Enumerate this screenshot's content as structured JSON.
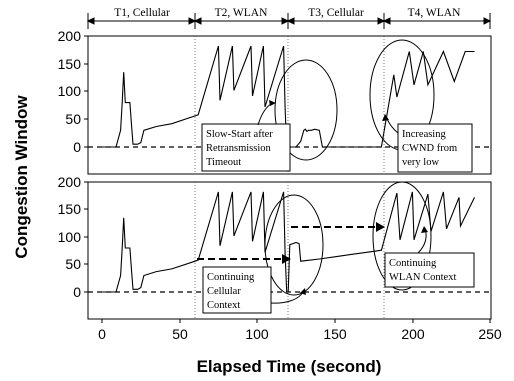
{
  "chart_data": {
    "type": "line",
    "xlabel": "Elapsed Time (second)",
    "ylabel": "Congestion Window",
    "xlim": [
      -15,
      250
    ],
    "ylim": [
      -25,
      200
    ],
    "x_ticks": [
      "0",
      "50",
      "100",
      "150",
      "200",
      "250"
    ],
    "y_ticks": [
      "0",
      "50",
      "100",
      "150",
      "200"
    ],
    "grid": false,
    "periods": [
      {
        "label": "T1, Cellular",
        "start": 0,
        "end": 60
      },
      {
        "label": "T2, WLAN",
        "start": 60,
        "end": 120
      },
      {
        "label": "T3, Cellular",
        "start": 120,
        "end": 180
      },
      {
        "label": "T4, WLAN",
        "start": 180,
        "end": 240
      }
    ],
    "panels": [
      {
        "position": "top",
        "series": [
          {
            "x": [
              0,
              9,
              12,
              13,
              14,
              15,
              16,
              18,
              19,
              20,
              23,
              25,
              27,
              35,
              45,
              60,
              62,
              75,
              76,
              84,
              85,
              96,
              97,
              104,
              105,
              117,
              118,
              119,
              120,
              125,
              128,
              130,
              131,
              132,
              133,
              135,
              137,
              140,
              142,
              179,
              180,
              188,
              190,
              198,
              201,
              207,
              210,
              220,
              227,
              234,
              240
            ],
            "y": [
              0,
              0,
              30,
              80,
              135,
              80,
              80,
              80,
              40,
              5,
              5,
              8,
              30,
              37,
              42,
              56,
              58,
              182,
              84,
              182,
              102,
              182,
              92,
              182,
              72,
              182,
              70,
              0,
              0,
              0,
              10,
              30,
              32,
              28,
              30,
              30,
              32,
              30,
              0,
              0,
              0,
              130,
              90,
              172,
              112,
              172,
              112,
              172,
              118,
              172,
              172
            ]
          }
        ],
        "baseline": 0,
        "annotations": [
          "Slow-Start after Retransmission Timeout",
          "Increasing CWND from very low"
        ]
      },
      {
        "position": "bottom",
        "series": [
          {
            "x": [
              0,
              9,
              12,
              13,
              14,
              15,
              16,
              18,
              19,
              20,
              23,
              25,
              27,
              35,
              45,
              60,
              62,
              75,
              76,
              84,
              85,
              96,
              97,
              104,
              105,
              117,
              118,
              119,
              120,
              121,
              123,
              125,
              127,
              128,
              140,
              150,
              160,
              170,
              180,
              190,
              192,
              200,
              201,
              210,
              212,
              220,
              222,
              230,
              231,
              240
            ],
            "y": [
              0,
              0,
              30,
              80,
              135,
              80,
              80,
              80,
              40,
              5,
              5,
              8,
              30,
              37,
              42,
              56,
              58,
              182,
              84,
              182,
              102,
              182,
              92,
              182,
              72,
              182,
              70,
              0,
              0,
              86,
              88,
              90,
              88,
              56,
              60,
              64,
              68,
              72,
              76,
              180,
              95,
              182,
              95,
              178,
              110,
              182,
              115,
              172,
              120,
              172
            ]
          }
        ],
        "baseline": 0,
        "annotations": [
          "Continuing Cellular Context",
          "Continuing WLAN Context"
        ]
      }
    ]
  }
}
